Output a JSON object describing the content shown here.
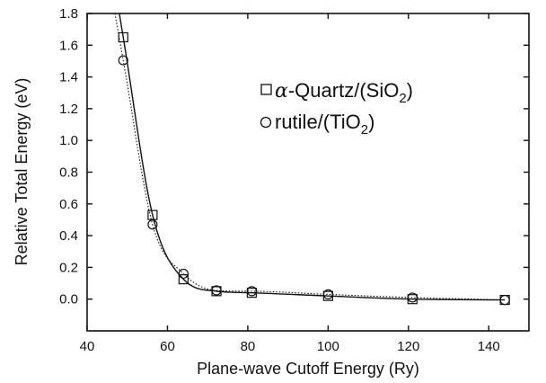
{
  "chart_data": {
    "type": "scatter",
    "xlabel": "Plane-wave Cutoff Energy (Ry)",
    "ylabel": "Relative Total Energy (eV)",
    "xlim": [
      40,
      150
    ],
    "ylim": [
      -0.2,
      1.8
    ],
    "x_ticks": [
      40,
      60,
      80,
      100,
      120,
      140
    ],
    "x_tick_labels": [
      "40",
      "60",
      "80",
      "100",
      "120",
      "140"
    ],
    "y_ticks": [
      0.0,
      0.2,
      0.4,
      0.6,
      0.8,
      1.0,
      1.2,
      1.4,
      1.6,
      1.8
    ],
    "y_tick_labels": [
      "0.0",
      "0.2",
      "0.4",
      "0.6",
      "0.8",
      "1.0",
      "1.2",
      "1.4",
      "1.6",
      "1.8"
    ],
    "grid": false,
    "legend_position": "top-right",
    "series": [
      {
        "name": "α-Quartz/(SiO2)",
        "legend_prefix": "α",
        "legend_main": "-Quartz/(SiO",
        "legend_sub": "2",
        "legend_suffix": ")",
        "marker": "square",
        "fit_line": "solid",
        "x": [
          49,
          56.3,
          64,
          72.2,
          81,
          100,
          121,
          144
        ],
        "y": [
          1.65,
          0.53,
          0.125,
          0.05,
          0.04,
          0.02,
          0.0,
          -0.005
        ]
      },
      {
        "name": "rutile/(TiO2)",
        "legend_main": "rutile/(TiO",
        "legend_sub": "2",
        "legend_suffix": ")",
        "marker": "circle",
        "fit_line": "dotted",
        "x": [
          49,
          56.3,
          64,
          72.2,
          81,
          100,
          121,
          144
        ],
        "y": [
          1.505,
          0.47,
          0.16,
          0.055,
          0.05,
          0.03,
          0.01,
          -0.005
        ]
      }
    ]
  }
}
